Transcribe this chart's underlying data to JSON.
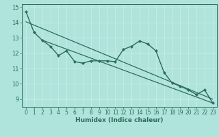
{
  "title": "",
  "xlabel": "Humidex (Indice chaleur)",
  "ylabel": "",
  "bg_color": "#aee4dc",
  "line_color": "#2d6b5e",
  "grid_color": "#c8eae4",
  "xlim": [
    -0.5,
    23.5
  ],
  "ylim": [
    8.5,
    15.2
  ],
  "ytick_vals": [
    9,
    10,
    11,
    12,
    13,
    14,
    15
  ],
  "ytick_labels": [
    "9",
    "10",
    "11",
    "12",
    "13",
    "14",
    "15"
  ],
  "xtick_vals": [
    0,
    1,
    2,
    3,
    4,
    5,
    6,
    7,
    8,
    9,
    10,
    11,
    12,
    13,
    14,
    15,
    16,
    17,
    18,
    19,
    20,
    21,
    22,
    23
  ],
  "xtick_labels": [
    "0",
    "1",
    "2",
    "3",
    "4",
    "5",
    "6",
    "7",
    "8",
    "9",
    "10",
    "11",
    "12",
    "13",
    "14",
    "15",
    "16",
    "17",
    "18",
    "19",
    "20",
    "21",
    "22",
    "23"
  ],
  "x_data": [
    0,
    1,
    2,
    3,
    4,
    5,
    6,
    7,
    8,
    9,
    10,
    11,
    12,
    13,
    14,
    15,
    16,
    17,
    18,
    19,
    20,
    21,
    22,
    23
  ],
  "y_data": [
    14.7,
    13.35,
    12.85,
    12.45,
    11.85,
    12.15,
    11.45,
    11.35,
    11.5,
    11.5,
    11.5,
    11.45,
    12.25,
    12.45,
    12.8,
    12.6,
    12.15,
    10.75,
    10.05,
    9.85,
    9.6,
    9.3,
    9.6,
    8.75
  ],
  "trend1_x": [
    0,
    23
  ],
  "trend1_y": [
    14.05,
    9.0
  ],
  "trend2_x": [
    2,
    23
  ],
  "trend2_y": [
    12.85,
    8.75
  ],
  "xlabel_fontsize": 6.5,
  "tick_fontsize": 5.5
}
